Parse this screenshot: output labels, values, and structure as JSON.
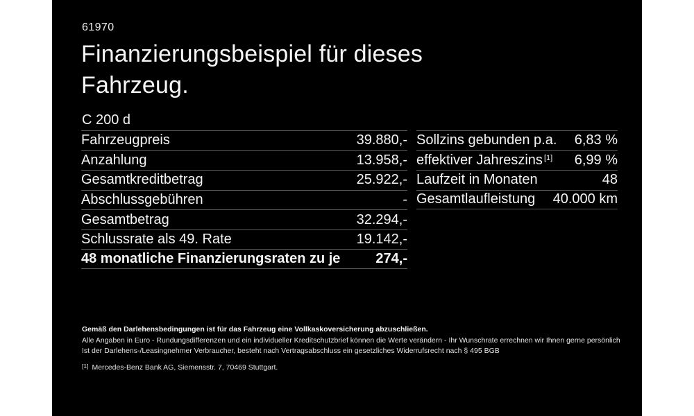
{
  "header": {
    "stock_number": "61970",
    "title_line1": "Finanzierungsbeispiel für dieses",
    "title_line2": "Fahrzeug.",
    "model": "C 200 d"
  },
  "left_table": {
    "rows": [
      {
        "label": "Fahrzeugpreis",
        "value": "39.880,-",
        "bold": false
      },
      {
        "label": "Anzahlung",
        "value": "13.958,-",
        "bold": false
      },
      {
        "label": "Gesamtkreditbetrag",
        "value": "25.922,-",
        "bold": false
      },
      {
        "label": "Abschlussgebühren",
        "value": "-",
        "bold": false
      },
      {
        "label": "Gesamtbetrag",
        "value": "32.294,-",
        "bold": false
      },
      {
        "label": "Schlussrate als 49. Rate",
        "value": "19.142,-",
        "bold": false
      },
      {
        "label": "48 monatliche Finanzierungsraten zu je",
        "value": "274,-",
        "bold": true
      }
    ]
  },
  "right_table": {
    "rows": [
      {
        "label": "Sollzins gebunden p.a.",
        "sup": "",
        "value": "6,83 %"
      },
      {
        "label": "effektiver Jahreszins",
        "sup": "[1]",
        "value": "6,99 %"
      },
      {
        "label": "Laufzeit in Monaten",
        "sup": "",
        "value": "48"
      },
      {
        "label": "Gesamtlaufleistung",
        "sup": "",
        "value": "40.000 km"
      }
    ]
  },
  "footer": {
    "insurance_note": "Gemäß den Darlehensbedingungen ist für das Fahrzeug eine Vollkaskoversicherung abzuschließen.",
    "disclaimer_line1": "Alle Angaben in Euro - Rundungsdifferenzen und ein individueller Kreditschutzbrief können die Werte verändern - Ihr Wunschrate errechnen wir Ihnen gerne persönlich",
    "disclaimer_line2": "Ist der Darlehens-/Leasingnehmer Verbraucher, besteht nach Vertragsabschluss ein gesetzliches Widerrufsrecht nach § 495 BGB",
    "footnote_marker": "[1]",
    "footnote_text": "Mercedes-Benz Bank AG, Siemensstr. 7, 70469 Stuttgart."
  },
  "colors": {
    "panel_background": "#000000",
    "page_margin": "#ffffff",
    "text_primary": "#f4f4f4",
    "divider": "#5c5c5c"
  }
}
